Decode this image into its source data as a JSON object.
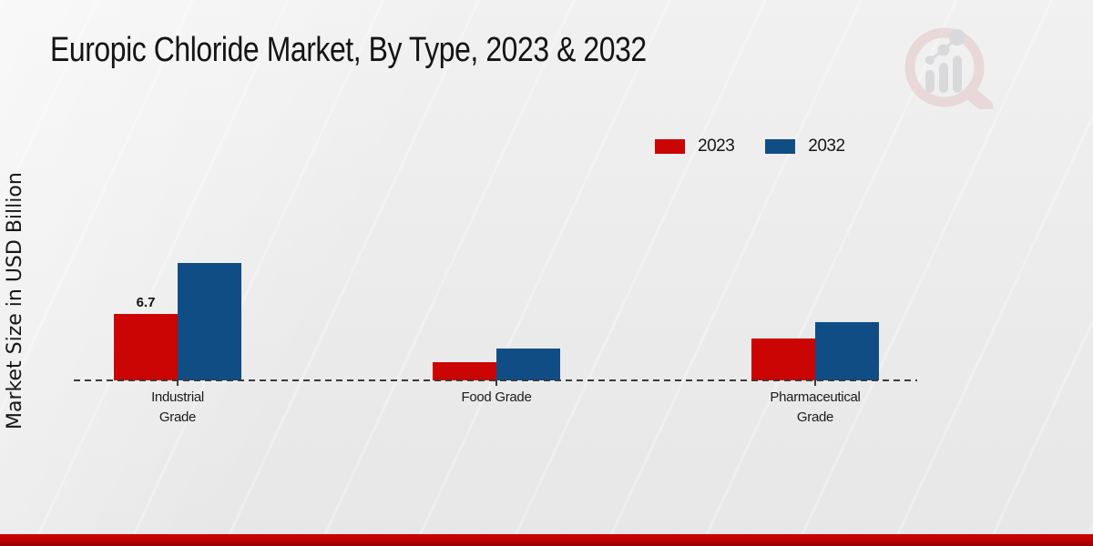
{
  "header": {
    "title": "Europic Chloride Market, By Type, 2023 & 2032"
  },
  "y_axis": {
    "label": "Market Size in USD Billion"
  },
  "legend": {
    "items": [
      {
        "label": "2023",
        "color": "#cb0404"
      },
      {
        "label": "2032",
        "color": "#114d85"
      }
    ]
  },
  "chart_data": {
    "type": "bar",
    "title": "Europic Chloride Market, By Type, 2023 & 2032",
    "xlabel": "",
    "ylabel": "Market Size in USD Billion",
    "categories": [
      "Industrial Grade",
      "Food Grade",
      "Pharmaceutical Grade"
    ],
    "category_label_lines": [
      [
        "Industrial",
        "Grade"
      ],
      [
        "Food Grade"
      ],
      [
        "Pharmaceutical",
        "Grade"
      ]
    ],
    "series": [
      {
        "name": "2023",
        "color": "#cb0404",
        "values": [
          6.7,
          1.8,
          4.2
        ]
      },
      {
        "name": "2032",
        "color": "#114d85",
        "values": [
          11.8,
          3.2,
          5.9
        ]
      }
    ],
    "data_labels": [
      {
        "series": "2023",
        "category": "Industrial Grade",
        "value_text": "6.7"
      }
    ],
    "ylim": [
      0,
      13
    ],
    "grid": false,
    "y_axis_ticks_visible": false,
    "zero_line_style": "dashed",
    "legend_position": "top-right"
  },
  "watermark": {
    "name": "magnifier-bar-chart-logo"
  },
  "footer": {
    "bar_color": "#b80000"
  }
}
